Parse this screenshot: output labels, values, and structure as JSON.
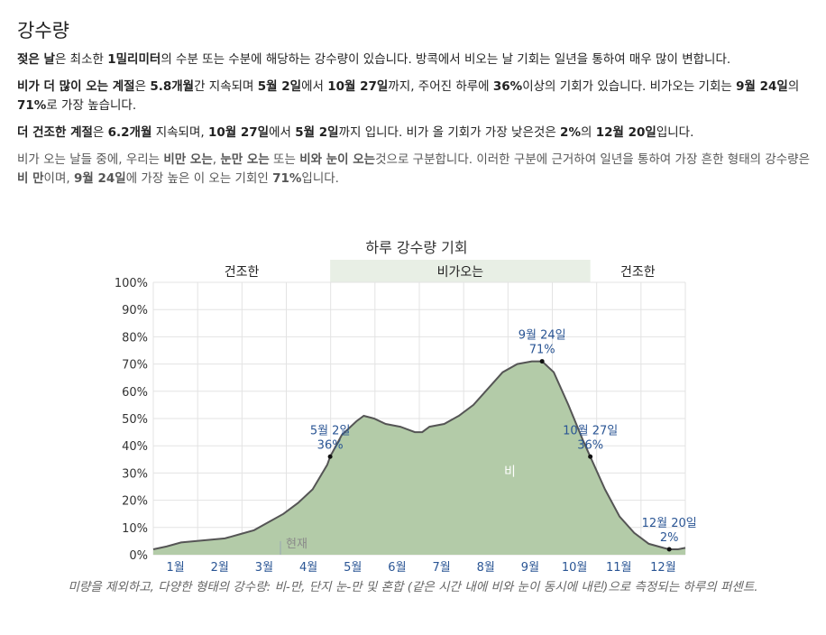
{
  "heading": "강수량",
  "para1": {
    "a": "젖은 날",
    "b": "은 최소한 ",
    "c": "1밀리미터",
    "d": "의 수분 또는 수분에 해당하는 강수량이 있습니다. 방콕에서 비오는 날 기회는 일년을 통하여 매우 많이 변합니다."
  },
  "para2": {
    "a": "비가 더 많이 오는 계절",
    "b": "은 ",
    "c": "5.8개월",
    "d": "간 지속되며 ",
    "e": "5월 2일",
    "f": "에서 ",
    "g": "10월 27일",
    "h": "까지, 주어진 하루에 ",
    "i": "36%",
    "j": "이상의 기회가 있습니다. 비가오는 기회는 ",
    "k": "9월 24일",
    "l": "의 ",
    "m": "71%",
    "n": "로 가장 높습니다."
  },
  "para3": {
    "a": "더 건조한 계절",
    "b": "은 ",
    "c": "6.2개월",
    "d": " 지속되며, ",
    "e": "10월 27일",
    "f": "에서 ",
    "g": "5월 2일",
    "h": "까지 입니다. 비가 올 기회가 가장 낮은것은 ",
    "i": "2%",
    "j": "의 ",
    "k": "12월 20일",
    "l": "입니다."
  },
  "para4": {
    "a": "비가 오는 날들 중에, 우리는 ",
    "b": "비만 오는",
    "c": ", ",
    "d": "눈만 오는",
    "e": " 또는 ",
    "f": "비와 눈이 오는",
    "g": "것으로 구분합니다. 이러한 구분에 근거하여 일년을 통하여 가장 흔한 형태의 강수량은 ",
    "h": "비 만",
    "i": "이며, ",
    "j": "9월 24일",
    "k": "에 가장 높은 이 오는 기회인 ",
    "l": "71%",
    "m": "입니다."
  },
  "caption": "미량을 제외하고, 다양한 형태의 강수량: 비-만, 단지 눈-만 및 혼합 (같은 시간 내에 비와 눈이 동시에 내린)으로 측정되는 하루의 퍼센트.",
  "colors": {
    "area_fill": "#b3cba8",
    "line": "#555555",
    "wet_band": "#e8efe5",
    "annotation": "#2a5594",
    "today_line": "#9aa7b5",
    "grid": "#e3e3e3"
  },
  "chart_data": {
    "type": "area",
    "title": "하루 강수량 기회",
    "x_unit": "day_of_year",
    "xlim": [
      1,
      365
    ],
    "ylim": [
      0,
      100
    ],
    "y_ticks": [
      "0%",
      "10%",
      "20%",
      "30%",
      "40%",
      "50%",
      "60%",
      "70%",
      "80%",
      "90%",
      "100%"
    ],
    "x_ticks": [
      "1월",
      "2월",
      "3월",
      "4월",
      "5월",
      "6월",
      "7월",
      "8월",
      "9월",
      "10월",
      "11월",
      "12월"
    ],
    "seasons": [
      {
        "label": "건조한",
        "start": 1,
        "end": 122,
        "wet": false
      },
      {
        "label": "비가오는",
        "start": 122,
        "end": 300,
        "wet": true
      },
      {
        "label": "건조한",
        "start": 300,
        "end": 365,
        "wet": false
      }
    ],
    "series": [
      {
        "name": "비",
        "x": [
          1,
          10,
          20,
          30,
          40,
          50,
          60,
          70,
          80,
          90,
          100,
          110,
          120,
          122,
          130,
          140,
          145,
          152,
          160,
          170,
          180,
          185,
          190,
          200,
          210,
          220,
          230,
          240,
          250,
          260,
          267,
          275,
          285,
          295,
          300,
          310,
          320,
          330,
          340,
          350,
          354,
          360,
          365
        ],
        "y": [
          2,
          3,
          4.5,
          5,
          5.5,
          6,
          7.5,
          9,
          12,
          15,
          19,
          24,
          33,
          36,
          44,
          49,
          51,
          50,
          48,
          47,
          45,
          45,
          47,
          48,
          51,
          55,
          61,
          67,
          70,
          71,
          71,
          67,
          55,
          42,
          36,
          24,
          14,
          8,
          4,
          2.5,
          2,
          2,
          2.5
        ]
      }
    ],
    "series_label": "비",
    "today_label": "현재",
    "today_day": 88,
    "annotations": [
      {
        "day": 122,
        "value": 36,
        "date": "5월 2일",
        "pct": "36%"
      },
      {
        "day": 267,
        "value": 71,
        "date": "9월 24일",
        "pct": "71%"
      },
      {
        "day": 300,
        "value": 36,
        "date": "10월 27일",
        "pct": "36%"
      },
      {
        "day": 354,
        "value": 2,
        "date": "12월 20일",
        "pct": "2%"
      }
    ]
  }
}
